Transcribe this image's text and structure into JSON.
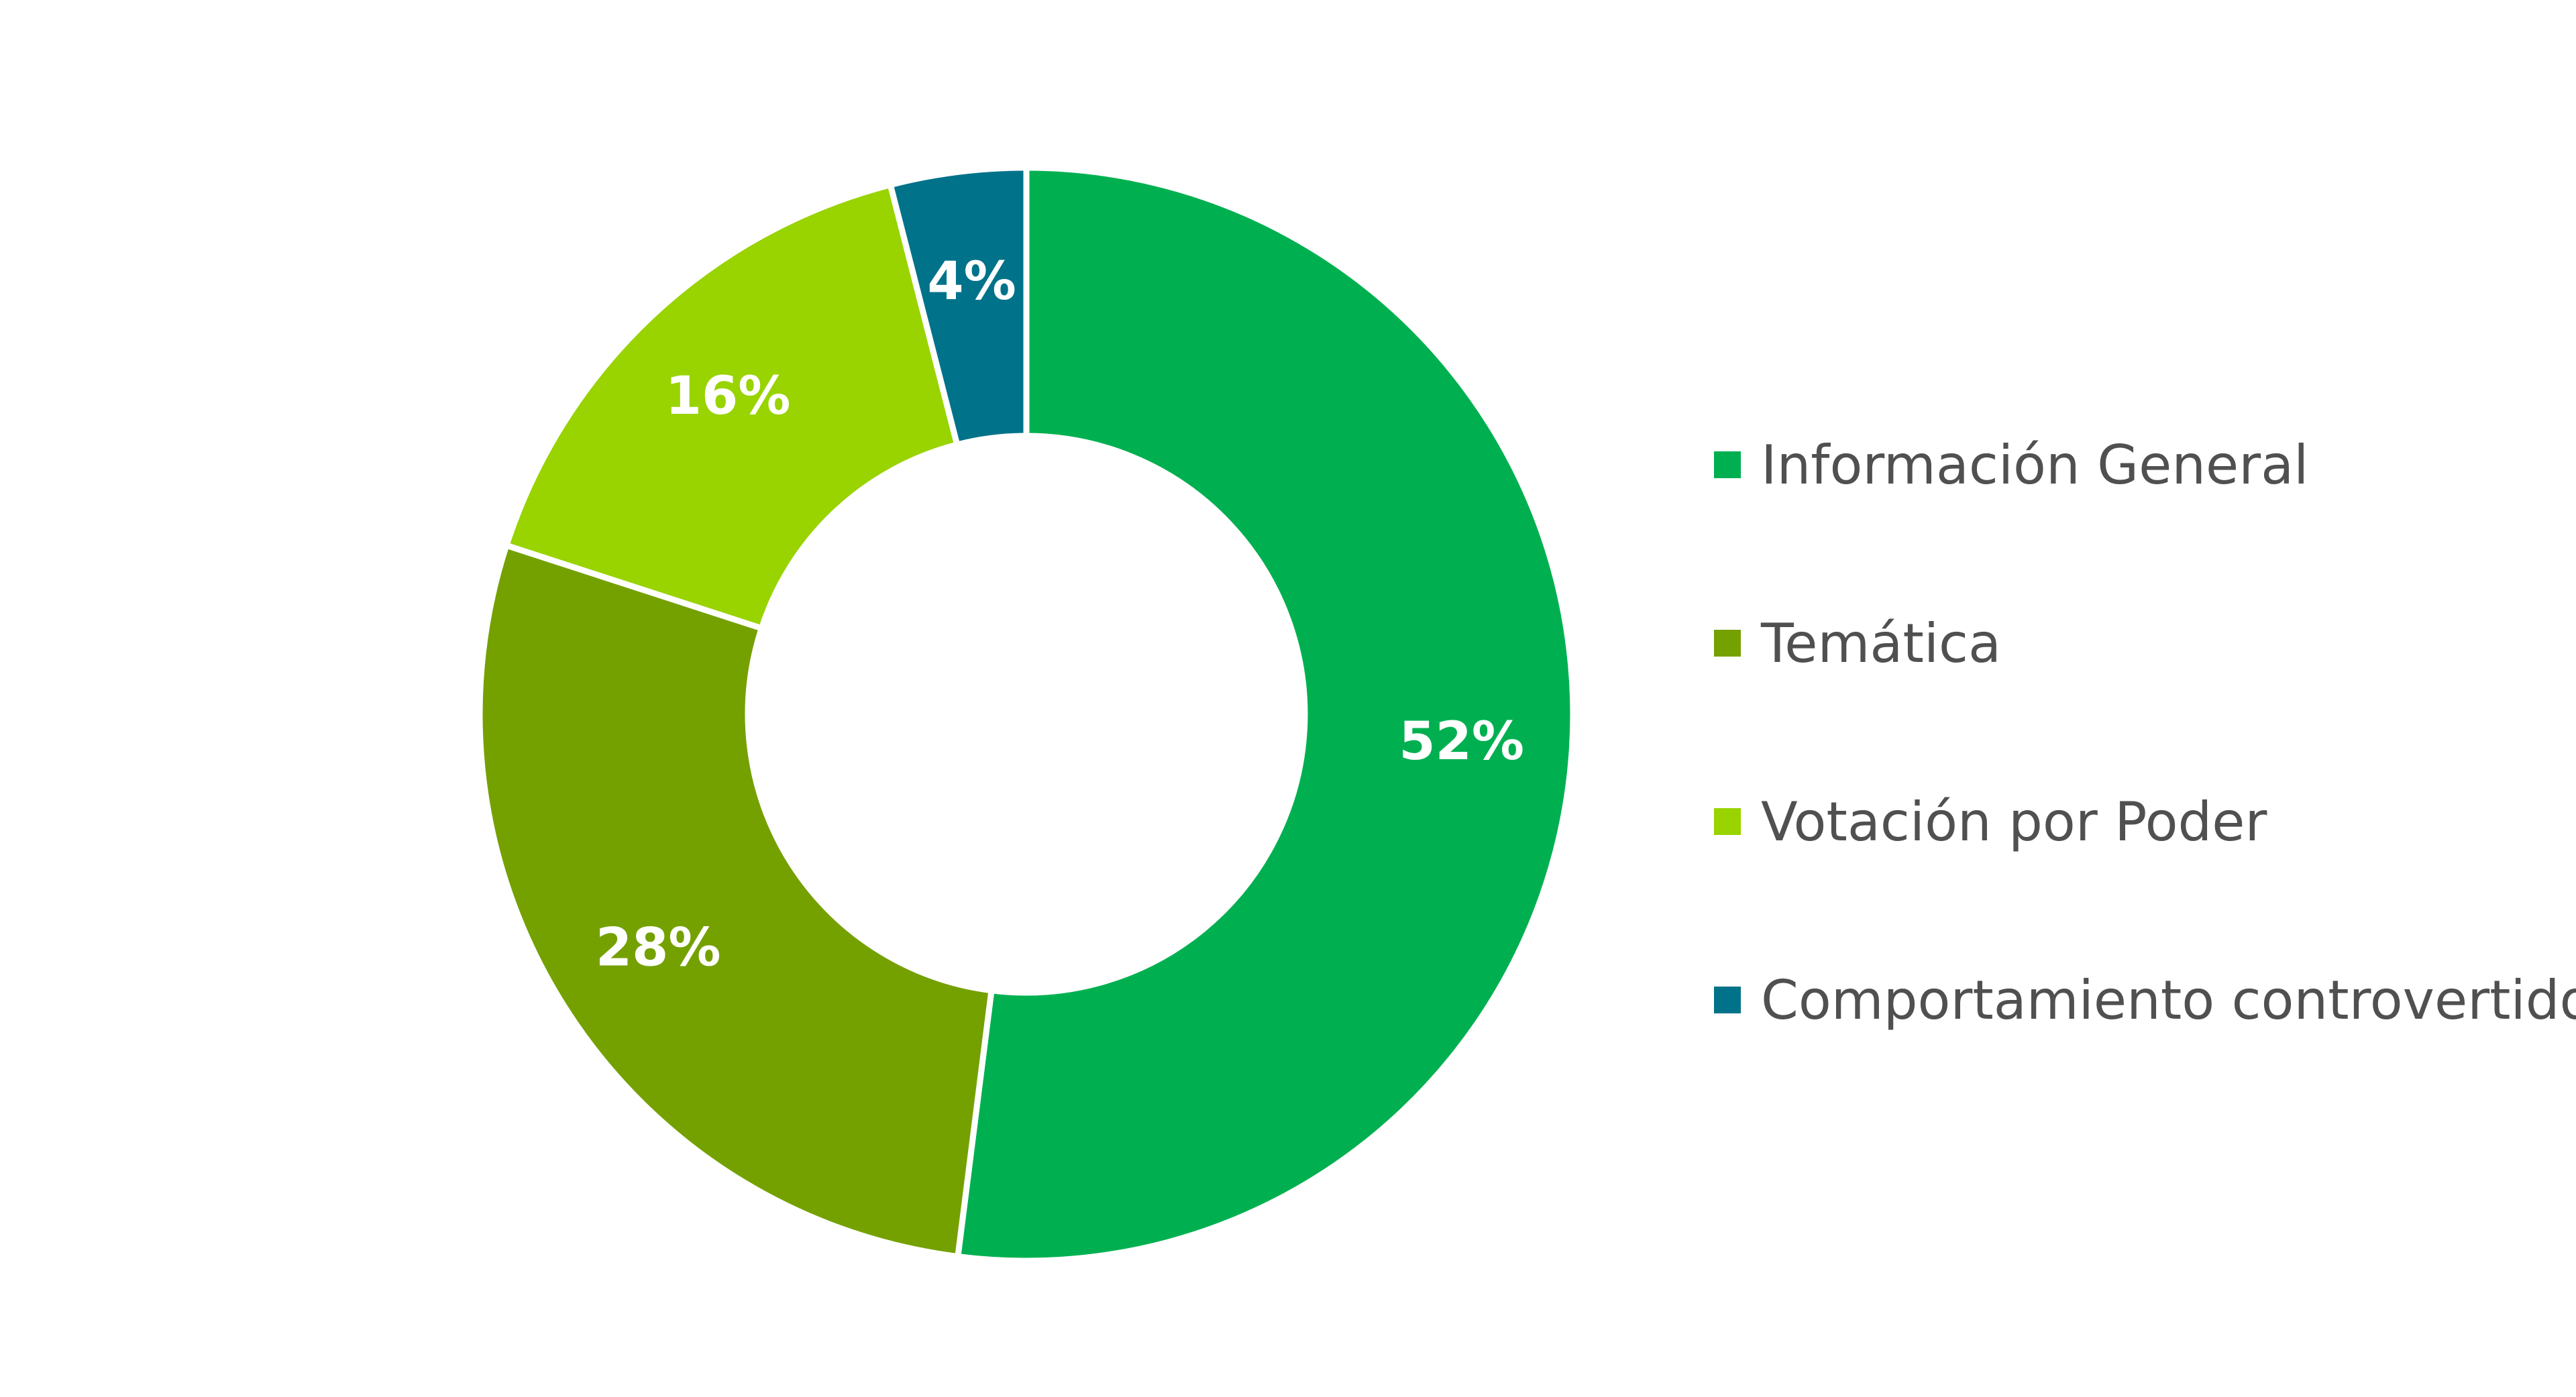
{
  "chart_data": {
    "type": "pie",
    "variant": "donut",
    "title": "",
    "categories": [
      "Información General",
      "Temática",
      "Votación por Poder",
      "Comportamiento controvertido"
    ],
    "values": [
      52,
      28,
      16,
      4
    ],
    "data_labels": [
      "52%",
      "28%",
      "16%",
      "4%"
    ],
    "unit": "%",
    "colors": [
      "#00B050",
      "#74A100",
      "#99D300",
      "#00728A"
    ],
    "legend_placement": "right",
    "slice_border_color": "#FFFFFF"
  }
}
